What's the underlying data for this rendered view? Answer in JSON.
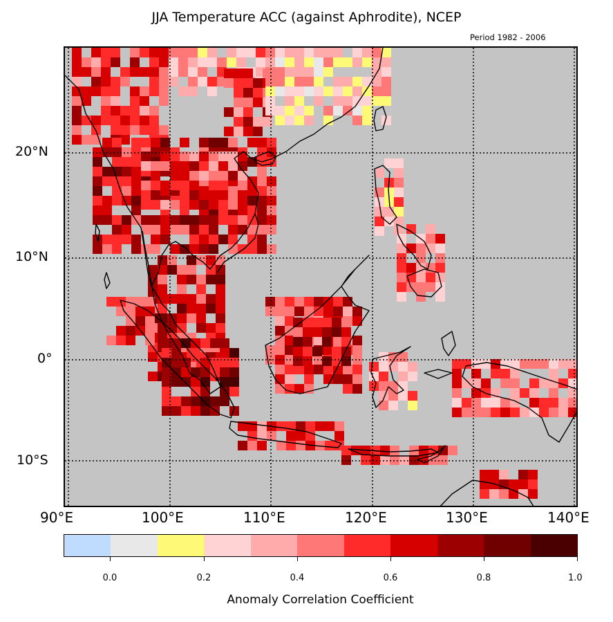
{
  "title": "JJA Temperature ACC (against Aphrodite), NCEP",
  "subtitle": "Period 1982 - 2006",
  "lat_labels": [
    "20°N",
    "10°N",
    "0°",
    "10°S"
  ],
  "lon_labels": [
    "90°E",
    "100°E",
    "110°E",
    "120°E",
    "130°E",
    "140°E"
  ],
  "colorbar": {
    "title": "Anomaly Correlation Coefficient",
    "tick_labels": [
      "0.0",
      "0.2",
      "0.4",
      "0.6",
      "0.8",
      "1.0"
    ],
    "colors": [
      "#bfdcff",
      "#e8e8e8",
      "#fff978",
      "#ffd3d3",
      "#ffabab",
      "#ff7878",
      "#ff2a2a",
      "#d60000",
      "#9d0000",
      "#700000",
      "#4a0000"
    ]
  },
  "colors": {
    "land_mask": "#c4c4c4",
    "coast": "#000000"
  }
}
